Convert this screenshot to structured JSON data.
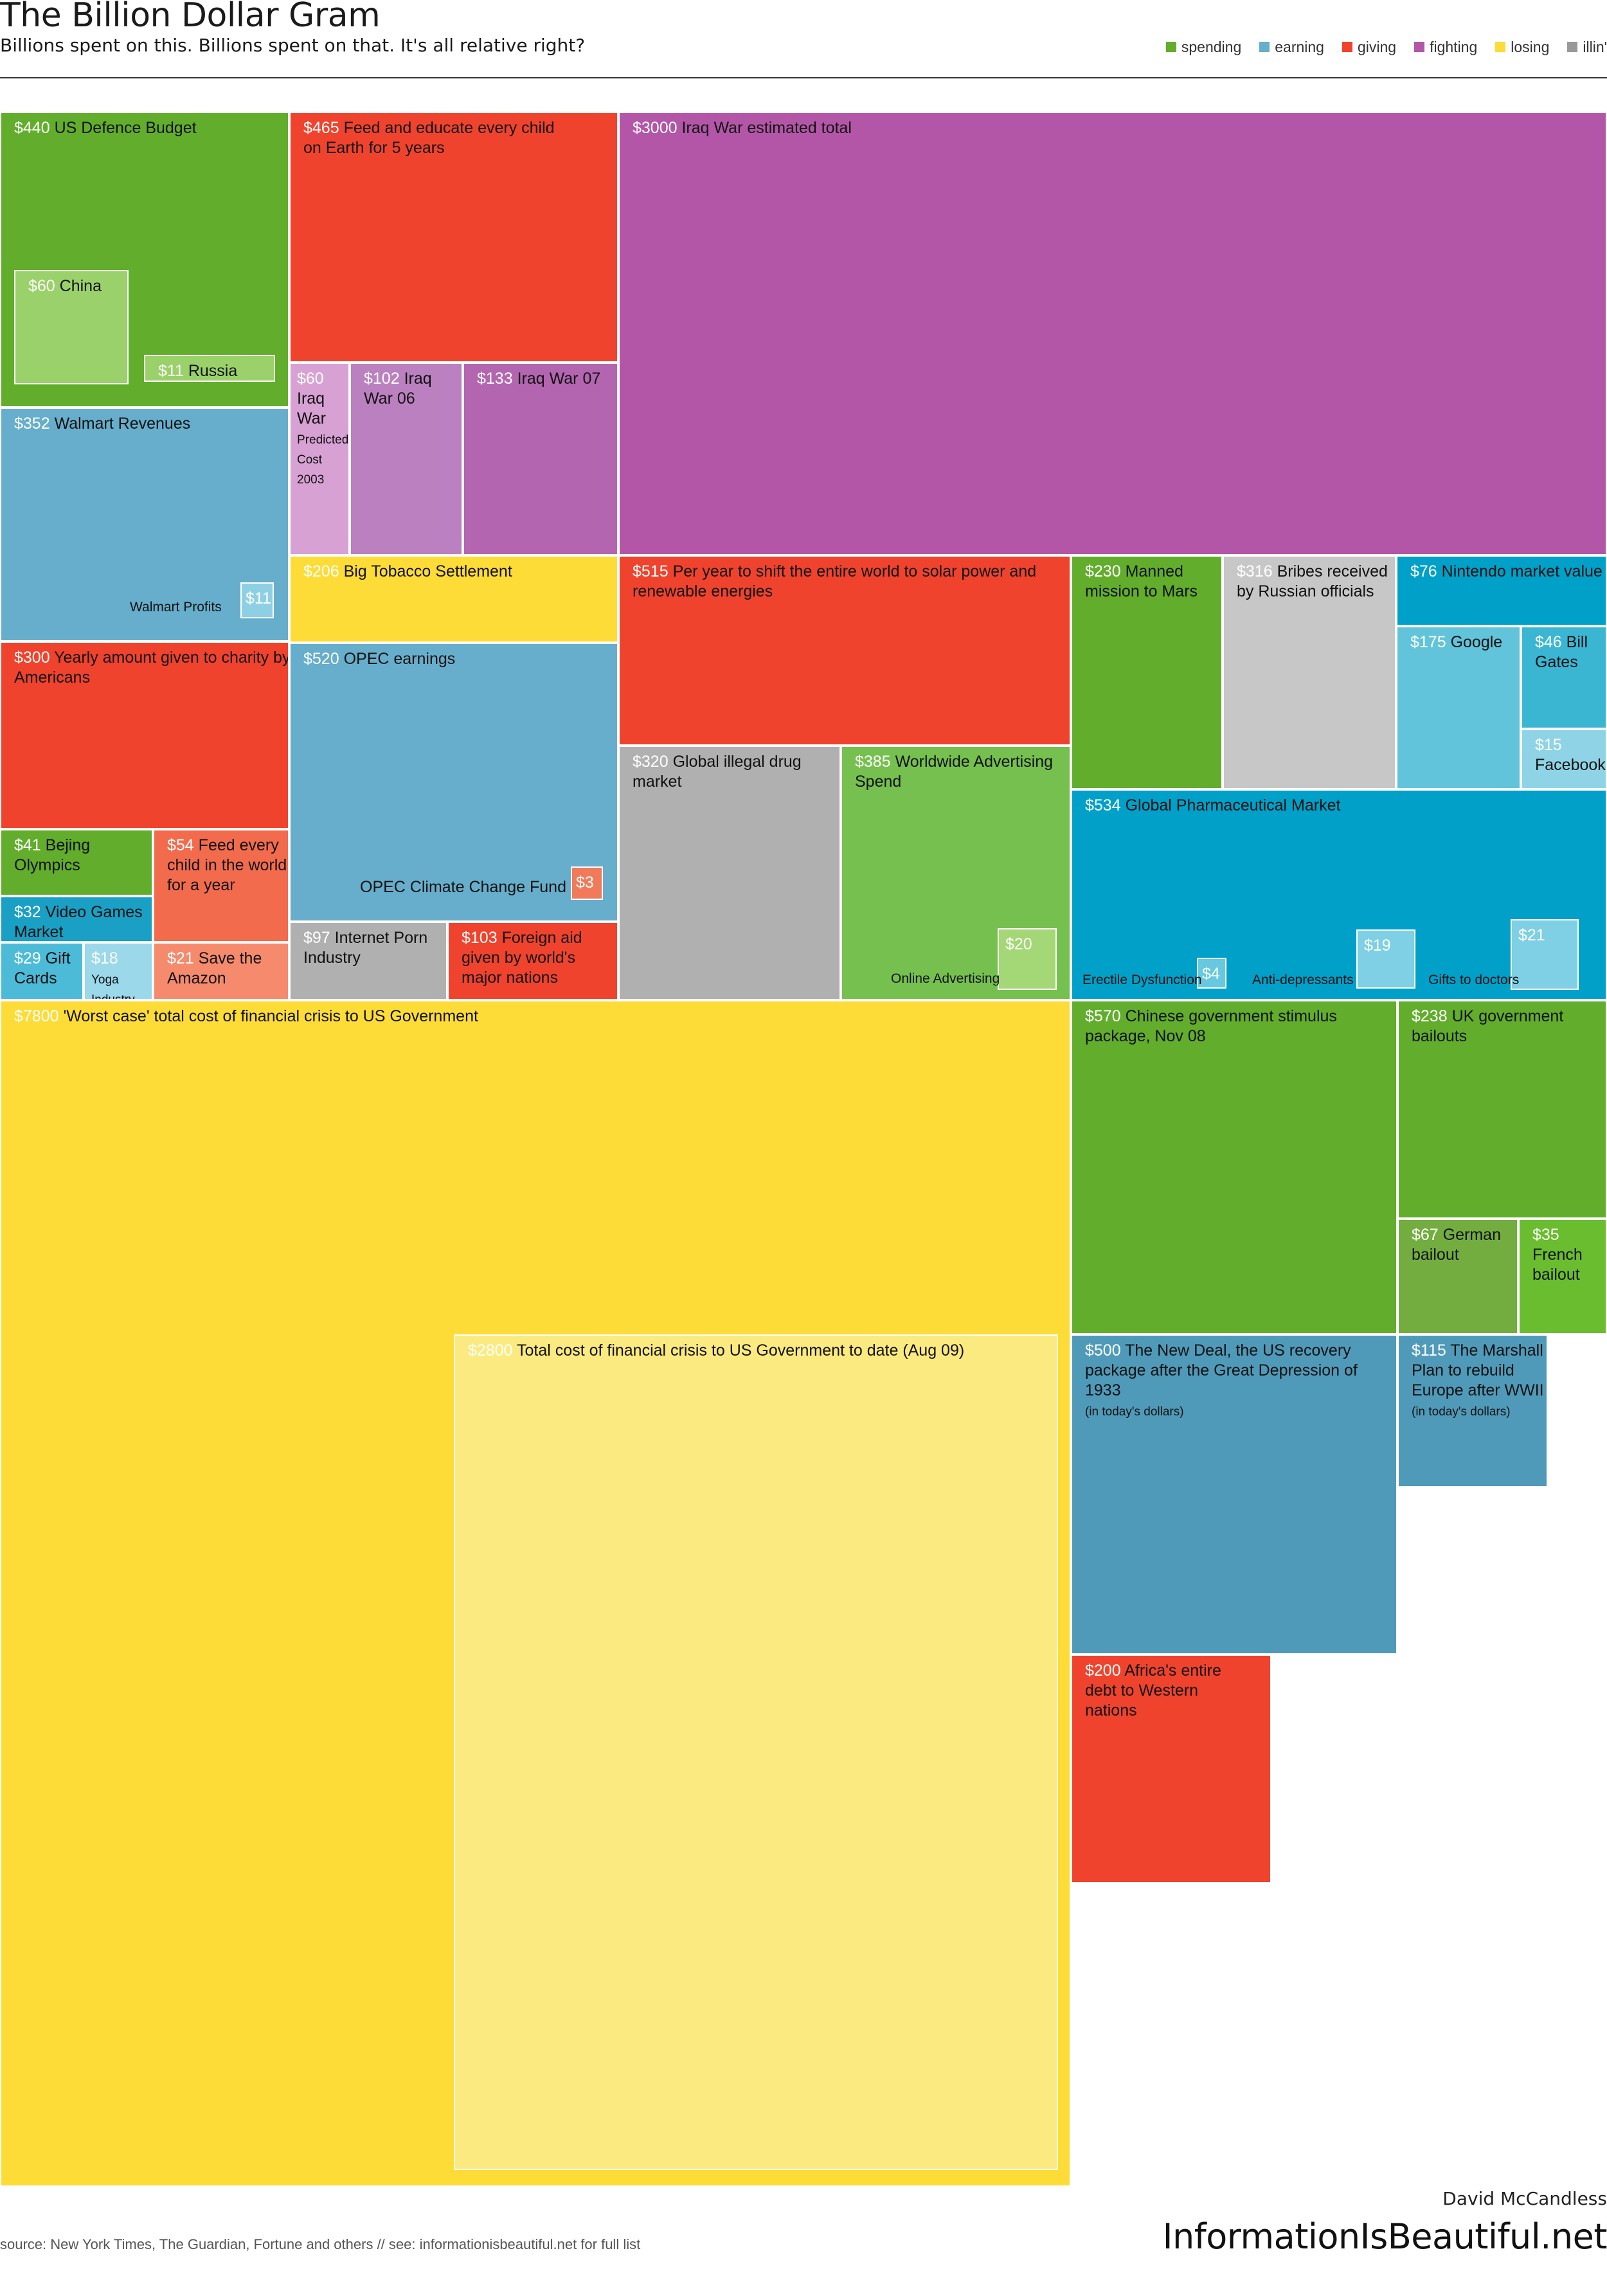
{
  "header": {
    "title": "The Billion Dollar Gram",
    "subtitle": "Billions spent on this. Billions spent on that. It's all relative right?"
  },
  "legend": [
    {
      "label": "spending",
      "color": "#62ad2c"
    },
    {
      "label": "earning",
      "color": "#66aecb"
    },
    {
      "label": "giving",
      "color": "#f0432d"
    },
    {
      "label": "fighting",
      "color": "#b356a8"
    },
    {
      "label": "losing",
      "color": "#fddc37"
    },
    {
      "label": "illin'",
      "color": "#999999"
    }
  ],
  "chart_data": {
    "type": "treemap",
    "units": "billions of US dollars",
    "items": [
      {
        "id": "defence",
        "value": "$440",
        "label": "US Defence Budget",
        "category": "spending",
        "color": "#62ad2c"
      },
      {
        "id": "china",
        "value": "$60",
        "label": "China",
        "category": "spending",
        "color": "#9bd16a"
      },
      {
        "id": "russia",
        "value": "$11",
        "label": "Russia",
        "category": "spending",
        "color": "#9bd16a"
      },
      {
        "id": "feed-educate",
        "value": "$465",
        "label": "Feed and educate every child on Earth for 5 years",
        "category": "giving",
        "color": "#f0432d"
      },
      {
        "id": "iraq-total",
        "value": "$3000",
        "label": "Iraq War estimated total",
        "category": "fighting",
        "color": "#b356a8"
      },
      {
        "id": "iraq-predicted",
        "value": "$60",
        "label": "Iraq War",
        "note": "Predicted Cost 2003",
        "category": "fighting",
        "color": "#d8a1d3"
      },
      {
        "id": "iraq-06",
        "value": "$102",
        "label": "Iraq War 06",
        "category": "fighting",
        "color": "#bb80c0"
      },
      {
        "id": "iraq-07",
        "value": "$133",
        "label": "Iraq War 07",
        "category": "fighting",
        "color": "#b465b0"
      },
      {
        "id": "walmart",
        "value": "$352",
        "label": "Walmart Revenues",
        "category": "earning",
        "color": "#66aecb"
      },
      {
        "id": "walmart-profits",
        "value": "$11",
        "label": "Walmart Profits",
        "category": "earning",
        "color": "#8dd0e4"
      },
      {
        "id": "tobacco",
        "value": "$206",
        "label": "Big Tobacco Settlement",
        "category": "losing",
        "color": "#fddc37"
      },
      {
        "id": "solar",
        "value": "$515",
        "label": "Per year to shift the entire world to solar power and renewable energies",
        "category": "giving",
        "color": "#f0432d"
      },
      {
        "id": "mars",
        "value": "$230",
        "label": "Manned mission to Mars",
        "category": "spending",
        "color": "#62ad2c"
      },
      {
        "id": "bribes",
        "value": "$316",
        "label": "Bribes received by Russian officials",
        "category": "illin'",
        "color": "#c7c7c7"
      },
      {
        "id": "nintendo",
        "value": "$76",
        "label": "Nintendo market value",
        "category": "earning",
        "color": "#00a0c8"
      },
      {
        "id": "google",
        "value": "$175",
        "label": "Google",
        "category": "earning",
        "color": "#62c4da"
      },
      {
        "id": "bill-gates",
        "value": "$46",
        "label": "Bill Gates",
        "category": "earning",
        "color": "#3ab6d3"
      },
      {
        "id": "facebook",
        "value": "$15",
        "label": "Facebook",
        "category": "earning",
        "color": "#8fd4e6"
      },
      {
        "id": "charity",
        "value": "$300",
        "label": "Yearly amount given to charity by Americans",
        "category": "giving",
        "color": "#f0432d"
      },
      {
        "id": "opec",
        "value": "$520",
        "label": "OPEC earnings",
        "category": "earning",
        "color": "#66aecb"
      },
      {
        "id": "opec-climate",
        "value": "$3",
        "label": "OPEC Climate Change Fund",
        "category": "giving",
        "color": "#f07a5a"
      },
      {
        "id": "drugs",
        "value": "$320",
        "label": "Global illegal drug market",
        "category": "illin'",
        "color": "#b0b0b0"
      },
      {
        "id": "advertising",
        "value": "$385",
        "label": "Worldwide Advertising Spend",
        "category": "spending",
        "color": "#76c04f"
      },
      {
        "id": "online-ads",
        "value": "$20",
        "label": "Online Advertising",
        "category": "spending",
        "color": "#a4d775"
      },
      {
        "id": "pharma",
        "value": "$534",
        "label": "Global Pharmaceutical Market",
        "category": "earning",
        "color": "#00a0c8"
      },
      {
        "id": "erectile",
        "value": "$4",
        "label": "Erectile Dysfunction",
        "category": "earning",
        "color": "#66c9e0"
      },
      {
        "id": "antidepressants",
        "value": "$19",
        "label": "Anti-depressants",
        "category": "earning",
        "color": "#7fd0e4"
      },
      {
        "id": "gifts-doctors",
        "value": "$21",
        "label": "Gifts to doctors",
        "category": "earning",
        "color": "#7fd0e4"
      },
      {
        "id": "beijing",
        "value": "$41",
        "label": "Bejing Olympics",
        "category": "spending",
        "color": "#62ad2c"
      },
      {
        "id": "feed-child",
        "value": "$54",
        "label": "Feed every child in the world for a year",
        "category": "giving",
        "color": "#f26b4c"
      },
      {
        "id": "video-games",
        "value": "$32",
        "label": "Video Games Market",
        "category": "earning",
        "color": "#19a0c4"
      },
      {
        "id": "gift-cards",
        "value": "$29",
        "label": "Gift Cards",
        "category": "earning",
        "color": "#4cbbd8"
      },
      {
        "id": "yoga",
        "value": "$18",
        "label": "Yoga Industry",
        "category": "earning",
        "color": "#9ad8ea"
      },
      {
        "id": "amazon",
        "value": "$21",
        "label": "Save the Amazon",
        "category": "giving",
        "color": "#f58b6c"
      },
      {
        "id": "porn",
        "value": "$97",
        "label": "Internet Porn Industry",
        "category": "illin'",
        "color": "#b0b0b0"
      },
      {
        "id": "foreign-aid",
        "value": "$103",
        "label": "Foreign aid given by world's major nations",
        "category": "giving",
        "color": "#f0432d"
      },
      {
        "id": "worst-case",
        "value": "$7800",
        "label": "'Worst case' total cost of financial crisis to US Government",
        "category": "losing",
        "color": "#fddc37"
      },
      {
        "id": "to-date",
        "value": "$2800",
        "label": "Total cost of financial crisis to US Government to date (Aug 09)",
        "category": "losing",
        "color": "#fbea80"
      },
      {
        "id": "china-stimulus",
        "value": "$570",
        "label": "Chinese government stimulus package, Nov 08",
        "category": "spending",
        "color": "#62ad2c"
      },
      {
        "id": "uk-bailouts",
        "value": "$238",
        "label": "UK government bailouts",
        "category": "spending",
        "color": "#62ad2c"
      },
      {
        "id": "german-bailout",
        "value": "$67",
        "label": "German bailout",
        "category": "spending",
        "color": "#73ad40"
      },
      {
        "id": "french-bailout",
        "value": "$35",
        "label": "French bailout",
        "category": "spending",
        "color": "#6abd2e"
      },
      {
        "id": "new-deal",
        "value": "$500",
        "label": "The New Deal, the US recovery package after the Great Depression of 1933",
        "note": "(in today's dollars)",
        "category": "earning",
        "color": "#509ab9"
      },
      {
        "id": "marshall",
        "value": "$115",
        "label": "The Marshall Plan to rebuild Europe after WWII",
        "note": "(in today's dollars)",
        "category": "earning",
        "color": "#509ab9"
      },
      {
        "id": "africa-debt",
        "value": "$200",
        "label": "Africa's entire debt to Western nations",
        "category": "giving",
        "color": "#f0432d"
      }
    ]
  },
  "footer": {
    "source": "source: New York Times, The Guardian, Fortune and others // see:  informationisbeautiful.net for full list",
    "author": "David McCandless",
    "brand": "InformationIsBeautiful.net"
  }
}
